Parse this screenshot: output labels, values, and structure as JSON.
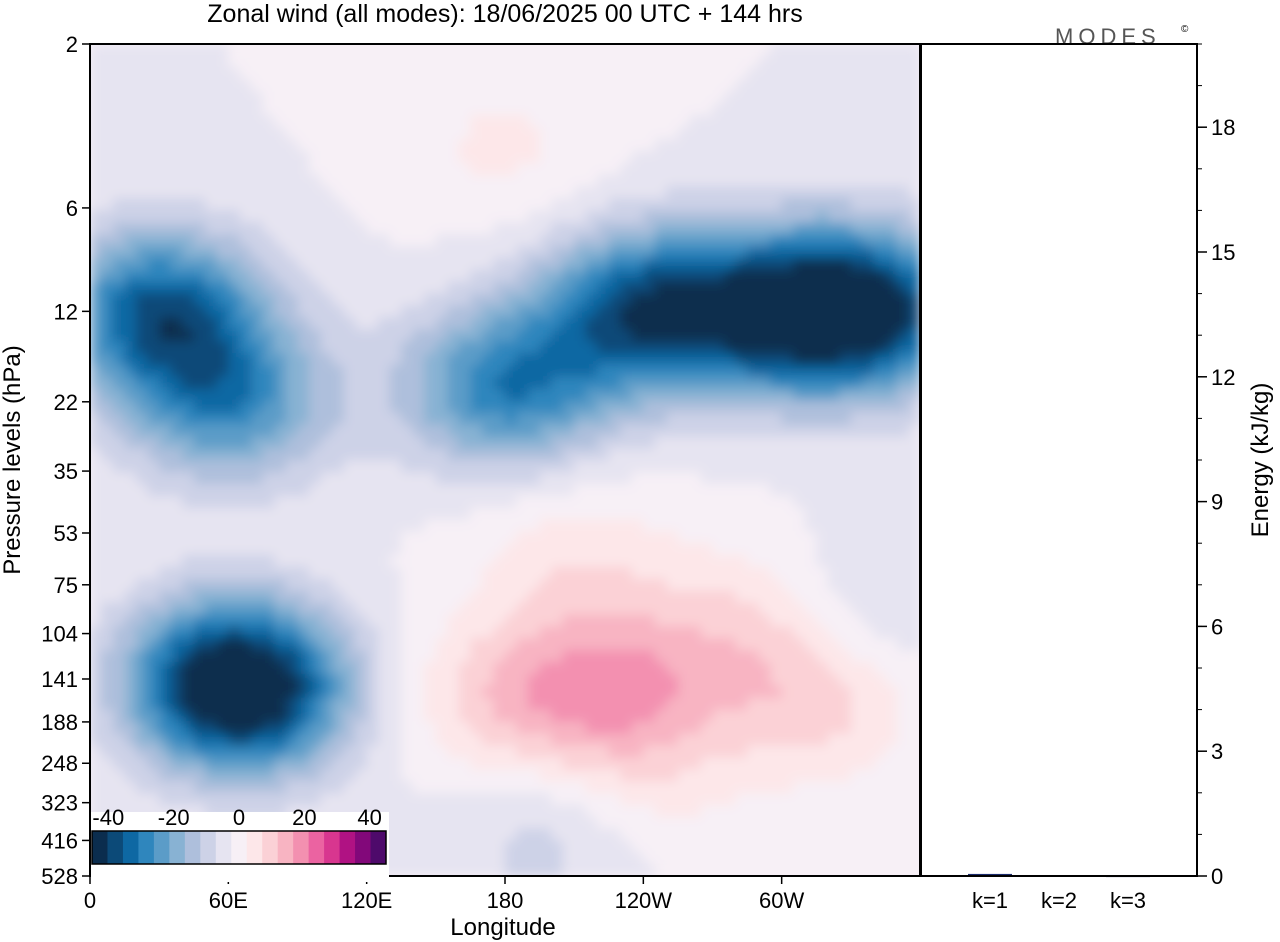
{
  "chart_data": [
    {
      "type": "heatmap",
      "title": "Zonal wind (all modes):  18/06/2025  00 UTC  + 144 hrs",
      "xlabel": "Longitude",
      "ylabel": "Pressure levels (hPa)",
      "x_ticks": [
        "0",
        "60E",
        "120E",
        "180",
        "120W",
        "60W"
      ],
      "x_tick_degrees": [
        0,
        60,
        120,
        180,
        240,
        300
      ],
      "xlim": [
        0,
        360
      ],
      "y_ticks": [
        "2",
        "6",
        "12",
        "22",
        "35",
        "53",
        "75",
        "104",
        "141",
        "188",
        "248",
        "323",
        "416",
        "528"
      ],
      "y_scale": "log",
      "ylim": [
        528,
        2
      ],
      "colorbar": {
        "ticks": [
          "-40",
          "-20",
          "0",
          "20",
          "40"
        ],
        "min": -45,
        "max": 45,
        "step": 5,
        "colors": [
          "#0b2d4e",
          "#0c4a78",
          "#0e68a3",
          "#2f86bd",
          "#5b9cc8",
          "#88b2d3",
          "#aebfdc",
          "#cdd2e7",
          "#e6e4f1",
          "#f7f0f6",
          "#fde7e9",
          "#fbd1d6",
          "#f8b4c2",
          "#f390b0",
          "#eb63a1",
          "#d8368f",
          "#b01283",
          "#82087a",
          "#4e0a6b"
        ]
      },
      "fields": [
        {
          "lon": 30,
          "p": 12,
          "u": -34
        },
        {
          "lon": 240,
          "p": 12,
          "u": -35
        },
        {
          "lon": 300,
          "p": 12,
          "u": -33
        },
        {
          "lon": 340,
          "p": 12,
          "u": -35
        },
        {
          "lon": 180,
          "p": 20,
          "u": -28
        },
        {
          "lon": 60,
          "p": 22,
          "u": -25
        },
        {
          "lon": 180,
          "p": 4,
          "u": 6
        },
        {
          "lon": 210,
          "p": 62,
          "u": 8
        },
        {
          "lon": 60,
          "p": 141,
          "u": -33
        },
        {
          "lon": 70,
          "p": 160,
          "u": -22
        },
        {
          "lon": 180,
          "p": 160,
          "u": 12
        },
        {
          "lon": 230,
          "p": 150,
          "u": 18
        },
        {
          "lon": 315,
          "p": 165,
          "u": 12
        },
        {
          "lon": 290,
          "p": 95,
          "u": 10
        },
        {
          "lon": 200,
          "p": 400,
          "u": -8
        },
        {
          "lon": 330,
          "p": 90,
          "u": -8
        },
        {
          "lon": 240,
          "p": 300,
          "u": 6
        }
      ]
    },
    {
      "type": "bar",
      "ylabel": "Energy (kJ/kg)",
      "categories": [
        "k=1",
        "k=2",
        "k=3"
      ],
      "values": [
        0.05,
        0.02,
        0.01
      ],
      "y_ticks": [
        "0",
        "3",
        "6",
        "9",
        "12",
        "15",
        "18"
      ],
      "ylim": [
        0,
        20
      ]
    }
  ],
  "branding": {
    "logo_text": "MODES",
    "symbol": "©"
  }
}
